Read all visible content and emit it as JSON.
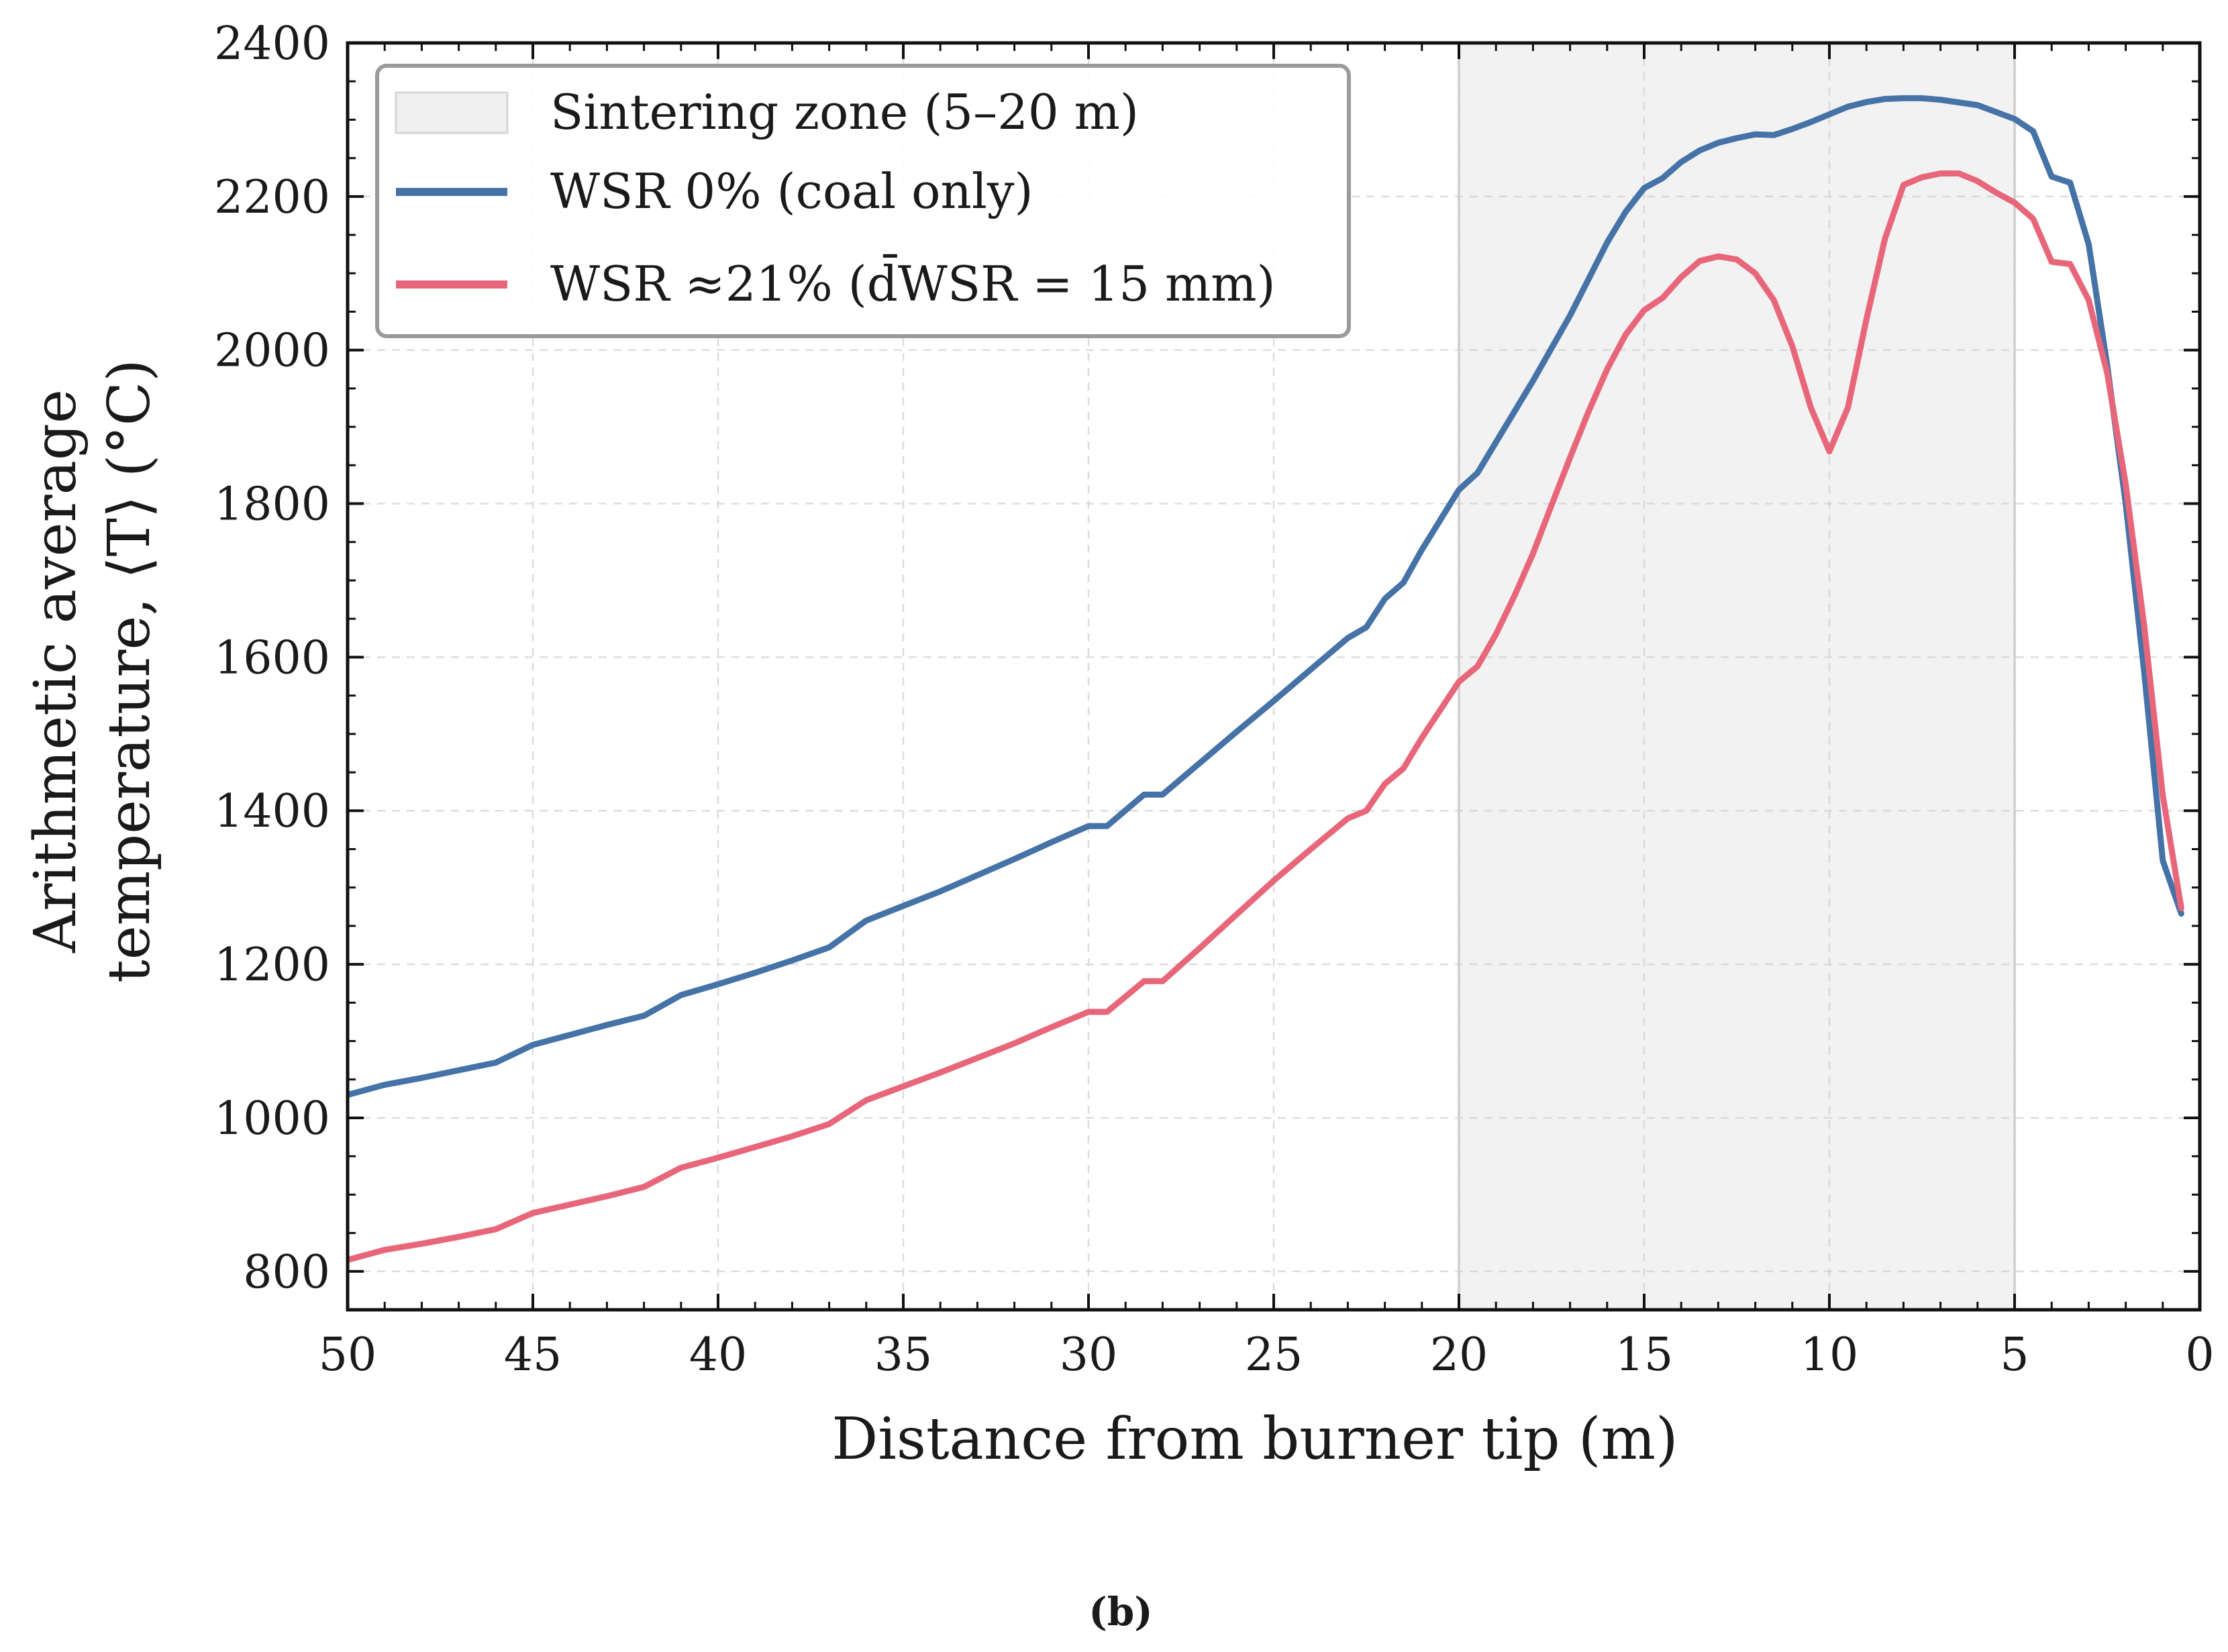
{
  "chart_data": {
    "type": "line",
    "xlabel": "Distance from burner tip (m)",
    "ylabel_line1": "Arithmetic average",
    "ylabel_line2": "temperature, ⟨T⟩ (°C)",
    "xlim": [
      50,
      0
    ],
    "ylim": [
      750,
      2400
    ],
    "x_reversed": true,
    "x_ticks": [
      50,
      45,
      40,
      35,
      30,
      25,
      20,
      15,
      10,
      5,
      0
    ],
    "y_ticks": [
      800,
      1000,
      1200,
      1400,
      1600,
      1800,
      2000,
      2200,
      2400
    ],
    "grid": true,
    "legend_position": "top-left",
    "shaded_region": {
      "label": "Sintering zone (5–20 m)",
      "x_from": 20,
      "x_to": 5,
      "color": "#f2f2f2"
    },
    "series": [
      {
        "name": "WSR 0% (coal only)",
        "color": "#4572a7",
        "x": [
          50,
          49,
          48,
          47,
          46,
          45,
          44,
          43,
          42,
          41,
          40,
          39,
          38,
          37,
          36,
          35,
          34,
          33,
          32,
          31,
          30,
          29.5,
          28.5,
          28,
          27,
          26,
          25,
          24,
          23,
          22.5,
          22,
          21.5,
          21,
          20,
          19.5,
          19,
          18,
          17,
          16,
          15.5,
          15,
          14.5,
          14,
          13.5,
          13,
          12.5,
          12,
          11.5,
          11,
          10.5,
          10,
          9.5,
          9,
          8.5,
          8,
          7.5,
          7,
          6,
          5,
          4.5,
          4,
          3.5,
          3,
          2.5,
          2,
          1.5,
          1,
          0.5
        ],
        "y": [
          1030,
          1043,
          1052,
          1062,
          1072,
          1095,
          1108,
          1121,
          1133,
          1160,
          1174,
          1189,
          1205,
          1222,
          1257,
          1276,
          1295,
          1316,
          1337,
          1359,
          1380,
          1380,
          1421,
          1421,
          1462,
          1503,
          1543,
          1584,
          1625,
          1639,
          1676,
          1697,
          1740,
          1818,
          1840,
          1880,
          1960,
          2045,
          2140,
          2180,
          2211,
          2224,
          2245,
          2260,
          2270,
          2276,
          2281,
          2280,
          2288,
          2297,
          2307,
          2317,
          2323,
          2327,
          2328,
          2328,
          2326,
          2319,
          2301,
          2285,
          2226,
          2218,
          2138,
          1980,
          1800,
          1580,
          1335,
          1266
        ]
      },
      {
        "name": "WSR ≈21% (d̄WSR = 15 mm)",
        "color": "#e8667a",
        "x": [
          50,
          49,
          48,
          47,
          46,
          45,
          44,
          43,
          42,
          41,
          40,
          39,
          38,
          37,
          36,
          35,
          34,
          33,
          32,
          31,
          30,
          29.5,
          28.5,
          28,
          27,
          26,
          25,
          24,
          23,
          22.5,
          22,
          21.5,
          21,
          20,
          19.5,
          19,
          18.5,
          18,
          17.5,
          17,
          16.5,
          16,
          15.5,
          15,
          14.5,
          14,
          13.5,
          13,
          12.5,
          12,
          11.5,
          11,
          10.5,
          10,
          9.5,
          9,
          8.5,
          8,
          7.5,
          7,
          6.5,
          6,
          5.5,
          5,
          4.5,
          4,
          3.5,
          3,
          2.5,
          2,
          1.5,
          1,
          0.5
        ],
        "y": [
          815,
          828,
          836,
          845,
          855,
          876,
          887,
          898,
          910,
          935,
          948,
          962,
          976,
          992,
          1023,
          1041,
          1059,
          1078,
          1097,
          1118,
          1138,
          1138,
          1178,
          1178,
          1221,
          1265,
          1309,
          1350,
          1390,
          1400,
          1435,
          1455,
          1495,
          1568,
          1588,
          1630,
          1680,
          1735,
          1798,
          1860,
          1920,
          1975,
          2020,
          2052,
          2068,
          2095,
          2116,
          2122,
          2118,
          2100,
          2065,
          2005,
          1925,
          1868,
          1925,
          2040,
          2145,
          2215,
          2225,
          2230,
          2230,
          2220,
          2205,
          2192,
          2171,
          2115,
          2112,
          2065,
          1970,
          1825,
          1640,
          1420,
          1273
        ]
      }
    ]
  },
  "caption": "(b)"
}
